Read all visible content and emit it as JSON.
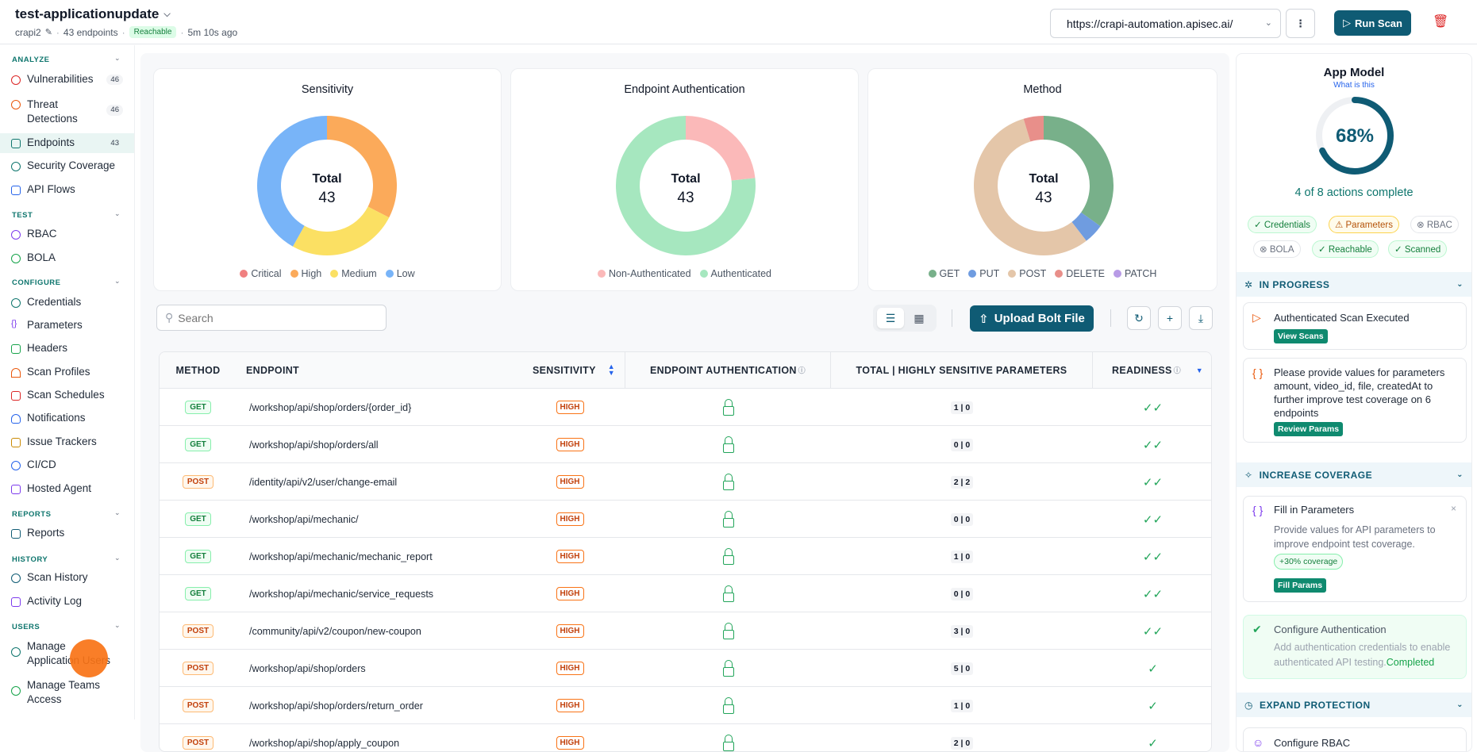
{
  "header": {
    "app_name": "test-applicationupdate",
    "project": "crapi2",
    "endpoints": "43 endpoints",
    "status": "Reachable",
    "updated": "5m 10s ago",
    "url": "https://crapi-automation.apisec.ai/",
    "run_scan": "Run Scan"
  },
  "sidebar": {
    "analyze_title": "ANALYZE",
    "vulnerabilities": "Vulnerabilities",
    "vulnerabilities_count": "46",
    "threat": "Threat Detections",
    "threat_count": "46",
    "endpoints": "Endpoints",
    "endpoints_count": "43",
    "security_coverage": "Security Coverage",
    "api_flows": "API Flows",
    "test_title": "TEST",
    "rbac": "RBAC",
    "bola": "BOLA",
    "configure_title": "CONFIGURE",
    "credentials": "Credentials",
    "parameters": "Parameters",
    "headers": "Headers",
    "scan_profiles": "Scan Profiles",
    "scan_schedules": "Scan Schedules",
    "notifications": "Notifications",
    "issue_trackers": "Issue Trackers",
    "cicd": "CI/CD",
    "hosted_agent": "Hosted Agent",
    "reports_title": "REPORTS",
    "reports": "Reports",
    "history_title": "HISTORY",
    "scan_history": "Scan History",
    "activity_log": "Activity Log",
    "users_title": "USERS",
    "manage_app_users": "Manage Application Users",
    "manage_teams": "Manage Teams Access"
  },
  "charts_text": {
    "total_label": "Total",
    "total_value": "43"
  },
  "chart_data": [
    {
      "type": "pie",
      "title": "Sensitivity",
      "categories": [
        "Critical",
        "High",
        "Medium",
        "Low"
      ],
      "values": [
        0,
        14,
        11,
        18
      ],
      "colors": [
        "#f08080",
        "#fbaa5a",
        "#fbe063",
        "#78b4f8"
      ]
    },
    {
      "type": "pie",
      "title": "Endpoint Authentication",
      "categories": [
        "Non-Authenticated",
        "Authenticated"
      ],
      "values": [
        10,
        33
      ],
      "colors": [
        "#fbb9b9",
        "#a6e7bf"
      ]
    },
    {
      "type": "pie",
      "title": "Method",
      "categories": [
        "GET",
        "PUT",
        "POST",
        "DELETE",
        "PATCH"
      ],
      "values": [
        15,
        2,
        24,
        2,
        0
      ],
      "colors": [
        "#78b08a",
        "#6f9ce0",
        "#e4c6a9",
        "#e88f8a",
        "#b89be6"
      ]
    }
  ],
  "toolbar": {
    "search_placeholder": "Search",
    "upload_label": "Upload Bolt File"
  },
  "table": {
    "headers": [
      "METHOD",
      "ENDPOINT",
      "SENSITIVITY",
      "ENDPOINT AUTHENTICATION",
      "TOTAL | HIGHLY SENSITIVE PARAMETERS",
      "READINESS"
    ],
    "rows": [
      {
        "method": "GET",
        "endpoint": "/workshop/api/shop/orders/{order_id}",
        "sensitivity": "HIGH",
        "params": "1 | 0",
        "ready": "✓✓"
      },
      {
        "method": "GET",
        "endpoint": "/workshop/api/shop/orders/all",
        "sensitivity": "HIGH",
        "params": "0 | 0",
        "ready": "✓✓"
      },
      {
        "method": "POST",
        "endpoint": "/identity/api/v2/user/change-email",
        "sensitivity": "HIGH",
        "params": "2 | 2",
        "ready": "✓✓"
      },
      {
        "method": "GET",
        "endpoint": "/workshop/api/mechanic/",
        "sensitivity": "HIGH",
        "params": "0 | 0",
        "ready": "✓✓"
      },
      {
        "method": "GET",
        "endpoint": "/workshop/api/mechanic/mechanic_report",
        "sensitivity": "HIGH",
        "params": "1 | 0",
        "ready": "✓✓"
      },
      {
        "method": "GET",
        "endpoint": "/workshop/api/mechanic/service_requests",
        "sensitivity": "HIGH",
        "params": "0 | 0",
        "ready": "✓✓"
      },
      {
        "method": "POST",
        "endpoint": "/community/api/v2/coupon/new-coupon",
        "sensitivity": "HIGH",
        "params": "3 | 0",
        "ready": "✓✓"
      },
      {
        "method": "POST",
        "endpoint": "/workshop/api/shop/orders",
        "sensitivity": "HIGH",
        "params": "5 | 0",
        "ready": "✓"
      },
      {
        "method": "POST",
        "endpoint": "/workshop/api/shop/orders/return_order",
        "sensitivity": "HIGH",
        "params": "1 | 0",
        "ready": "✓"
      },
      {
        "method": "POST",
        "endpoint": "/workshop/api/shop/apply_coupon",
        "sensitivity": "HIGH",
        "params": "2 | 0",
        "ready": "✓"
      }
    ]
  },
  "app_model": {
    "title": "App Model",
    "link": "What is this",
    "percent": "68%",
    "progress_fraction": 0.68,
    "actions": "4 of 8 actions complete",
    "chips": {
      "credentials": "Credentials",
      "parameters": "Parameters",
      "rbac": "RBAC",
      "bola": "BOLA",
      "reachable": "Reachable",
      "scanned": "Scanned"
    },
    "in_progress": "IN PROGRESS",
    "auth_scan": "Authenticated Scan Executed",
    "view_scans": "View Scans",
    "provide_values": "Please provide values for parameters amount, video_id, file, createdAt to further improve test coverage on 6 endpoints",
    "review_params": "Review Params",
    "increase_coverage": "INCREASE COVERAGE",
    "fill_title": "Fill in Parameters",
    "fill_desc": "Provide values for API parameters to improve endpoint test coverage.",
    "coverage_pill": "+30% coverage",
    "fill_params": "Fill Params",
    "configure_auth_title": "Configure Authentication",
    "configure_auth_desc": "Add authentication credentials to enable authenticated API testing.",
    "completed": "Completed",
    "expand_protection": "EXPAND PROTECTION",
    "configure_rbac": "Configure RBAC"
  }
}
